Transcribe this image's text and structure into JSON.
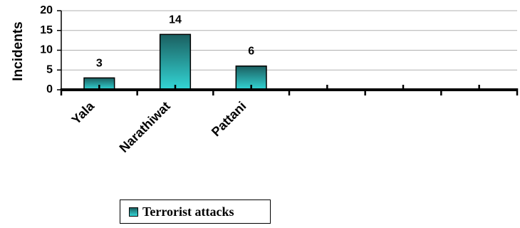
{
  "chart_data": {
    "type": "bar",
    "categories": [
      "Yala",
      "Narathiwat",
      "Pattani",
      "",
      "",
      ""
    ],
    "series": [
      {
        "name": "Terrorist attacks",
        "values": [
          3,
          14,
          6,
          null,
          null,
          null
        ]
      }
    ],
    "data_labels": [
      "3",
      "14",
      "6"
    ],
    "ylabel": "Incidents",
    "xlabel": "",
    "ylim": [
      0,
      20
    ],
    "yticks": [
      "0",
      "5",
      "10",
      "15",
      "20"
    ],
    "grid": true,
    "legend": "bottom",
    "colors": {
      "bar_top": "#1b5f60",
      "bar_bottom": "#33d6d6",
      "grid": "#b0b0b0",
      "axis": "#000000"
    }
  },
  "legend": {
    "label": "Terrorist attacks"
  }
}
